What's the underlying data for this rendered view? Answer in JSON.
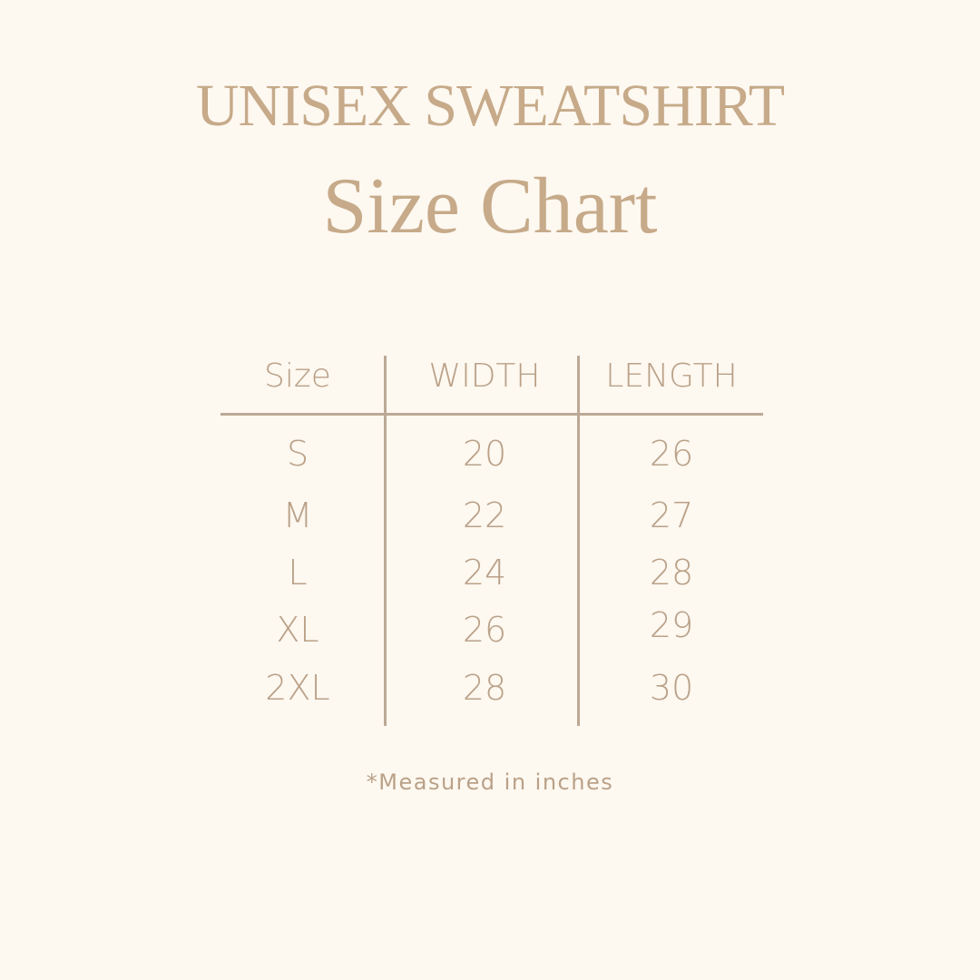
{
  "title": "UNISEX SWEATSHIRT",
  "subtitle": "Size Chart",
  "table": {
    "headers": [
      "Size",
      "WIDTH",
      "LENGTH"
    ],
    "rows": [
      [
        "S",
        "20",
        "26"
      ],
      [
        "M",
        "22",
        "27"
      ],
      [
        "L",
        "24",
        "28"
      ],
      [
        "XL",
        "26",
        "29"
      ],
      [
        "2XL",
        "28",
        "30"
      ]
    ]
  },
  "note": "*Measured in inches",
  "colors": {
    "background": "#fdf8f0",
    "text": "#baa188",
    "lines": "#bca995"
  }
}
